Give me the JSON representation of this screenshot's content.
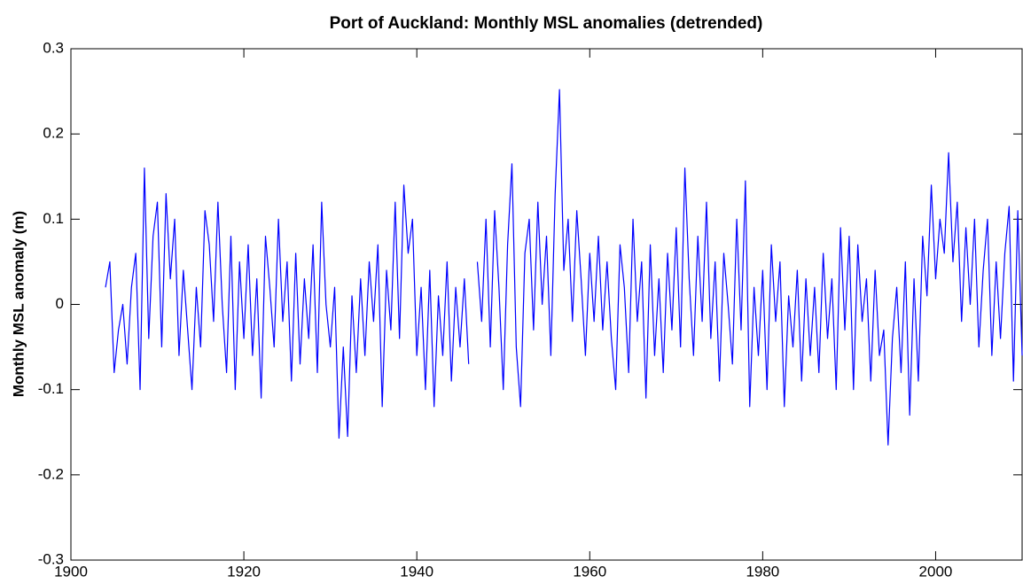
{
  "chart_data": {
    "type": "line",
    "title": "Port of Auckland: Monthly MSL anomalies (detrended)",
    "y_label": "Monthly MSL anomaly (m)",
    "xlim": [
      1900,
      2010
    ],
    "xticks": [
      1900,
      1920,
      1940,
      1960,
      1980,
      2000
    ],
    "ylim": [
      -0.3,
      0.3
    ],
    "yticks": [
      -0.3,
      -0.2,
      -0.1,
      0,
      0.1,
      0.2,
      0.3
    ],
    "x": [
      1904,
      1904.5,
      1905,
      1905.5,
      1906,
      1906.5,
      1907,
      1907.5,
      1908,
      1908.5,
      1909,
      1909.5,
      1910,
      1910.5,
      1911,
      1911.5,
      1912,
      1912.5,
      1913,
      1913.5,
      1914,
      1914.5,
      1915,
      1915.5,
      1916,
      1916.5,
      1917,
      1917.5,
      1918,
      1918.5,
      1919,
      1919.5,
      1920,
      1920.5,
      1921,
      1921.5,
      1922,
      1922.5,
      1923,
      1923.5,
      1924,
      1924.5,
      1925,
      1925.5,
      1926,
      1926.5,
      1927,
      1927.5,
      1928,
      1928.5,
      1929,
      1929.5,
      1930,
      1930.5,
      1931,
      1931.5,
      1932,
      1932.5,
      1933,
      1933.5,
      1934,
      1934.5,
      1935,
      1935.5,
      1936,
      1936.5,
      1937,
      1937.5,
      1938,
      1938.5,
      1939,
      1939.5,
      1940,
      1940.5,
      1941,
      1941.5,
      1942,
      1942.5,
      1943,
      1943.5,
      1944,
      1944.5,
      1945,
      1945.5,
      1946,
      1946.5,
      1947,
      1947.5,
      1948,
      1948.5,
      1949,
      1949.5,
      1950,
      1950.5,
      1951,
      1951.5,
      1952,
      1952.5,
      1953,
      1953.5,
      1954,
      1954.5,
      1955,
      1955.5,
      1956,
      1956.5,
      1957,
      1957.5,
      1958,
      1958.5,
      1959,
      1959.5,
      1960,
      1960.5,
      1961,
      1961.5,
      1962,
      1962.5,
      1963,
      1963.5,
      1964,
      1964.5,
      1965,
      1965.5,
      1966,
      1966.5,
      1967,
      1967.5,
      1968,
      1968.5,
      1969,
      1969.5,
      1970,
      1970.5,
      1971,
      1971.5,
      1972,
      1972.5,
      1973,
      1973.5,
      1974,
      1974.5,
      1975,
      1975.5,
      1976,
      1976.5,
      1977,
      1977.5,
      1978,
      1978.5,
      1979,
      1979.5,
      1980,
      1980.5,
      1981,
      1981.5,
      1982,
      1982.5,
      1983,
      1983.5,
      1984,
      1984.5,
      1985,
      1985.5,
      1986,
      1986.5,
      1987,
      1987.5,
      1988,
      1988.5,
      1989,
      1989.5,
      1990,
      1990.5,
      1991,
      1991.5,
      1992,
      1992.5,
      1993,
      1993.5,
      1994,
      1994.5,
      1995,
      1995.5,
      1996,
      1996.5,
      1997,
      1997.5,
      1998,
      1998.5,
      1999,
      1999.5,
      2000,
      2000.5,
      2001,
      2001.5,
      2002,
      2002.5,
      2003,
      2003.5,
      2004,
      2004.5,
      2005,
      2005.5,
      2006,
      2006.5,
      2007,
      2007.5,
      2008,
      2008.5,
      2009,
      2009.5,
      2010
    ],
    "series": [
      {
        "color": "#0000ff",
        "values": [
          0.02,
          0.05,
          -0.08,
          -0.03,
          0.0,
          -0.07,
          0.02,
          0.06,
          -0.1,
          0.16,
          -0.04,
          0.08,
          0.12,
          -0.05,
          0.13,
          0.03,
          0.1,
          -0.06,
          0.04,
          -0.03,
          -0.1,
          0.02,
          -0.05,
          0.11,
          0.07,
          -0.02,
          0.12,
          0.0,
          -0.08,
          0.08,
          -0.1,
          0.05,
          -0.04,
          0.07,
          -0.06,
          0.03,
          -0.11,
          0.08,
          0.02,
          -0.05,
          0.1,
          -0.02,
          0.05,
          -0.09,
          0.06,
          -0.07,
          0.03,
          -0.04,
          0.07,
          -0.08,
          0.12,
          0.0,
          -0.05,
          0.02,
          -0.157,
          -0.05,
          -0.155,
          0.01,
          -0.08,
          0.03,
          -0.06,
          0.05,
          -0.02,
          0.07,
          -0.12,
          0.04,
          -0.03,
          0.12,
          -0.04,
          0.14,
          0.06,
          0.1,
          -0.06,
          0.02,
          -0.1,
          0.04,
          -0.12,
          0.01,
          -0.06,
          0.05,
          -0.09,
          0.02,
          -0.05,
          0.03,
          -0.07,
          null,
          0.05,
          -0.02,
          0.1,
          -0.05,
          0.11,
          0.02,
          -0.1,
          0.07,
          0.165,
          -0.05,
          -0.12,
          0.06,
          0.1,
          -0.03,
          0.12,
          0.0,
          0.08,
          -0.06,
          0.13,
          0.252,
          0.04,
          0.1,
          -0.02,
          0.11,
          0.03,
          -0.06,
          0.06,
          -0.02,
          0.08,
          -0.03,
          0.05,
          -0.04,
          -0.1,
          0.07,
          0.02,
          -0.08,
          0.1,
          -0.02,
          0.05,
          -0.11,
          0.07,
          -0.06,
          0.03,
          -0.08,
          0.06,
          -0.03,
          0.09,
          -0.05,
          0.16,
          0.03,
          -0.06,
          0.08,
          -0.02,
          0.12,
          -0.04,
          0.05,
          -0.09,
          0.06,
          0.0,
          -0.07,
          0.1,
          -0.03,
          0.145,
          -0.12,
          0.02,
          -0.06,
          0.04,
          -0.1,
          0.07,
          -0.02,
          0.05,
          -0.12,
          0.01,
          -0.05,
          0.04,
          -0.09,
          0.03,
          -0.06,
          0.02,
          -0.08,
          0.06,
          -0.04,
          0.03,
          -0.1,
          0.09,
          -0.03,
          0.08,
          -0.1,
          0.07,
          -0.02,
          0.03,
          -0.09,
          0.04,
          -0.06,
          -0.03,
          -0.165,
          -0.04,
          0.02,
          -0.08,
          0.05,
          -0.13,
          0.03,
          -0.09,
          0.08,
          0.01,
          0.14,
          0.03,
          0.1,
          0.06,
          0.178,
          0.05,
          0.12,
          -0.02,
          0.09,
          0.0,
          0.1,
          -0.05,
          0.04,
          0.1,
          -0.06,
          0.05,
          -0.04,
          0.06,
          0.115,
          -0.09,
          0.11,
          -0.06
        ]
      }
    ]
  }
}
